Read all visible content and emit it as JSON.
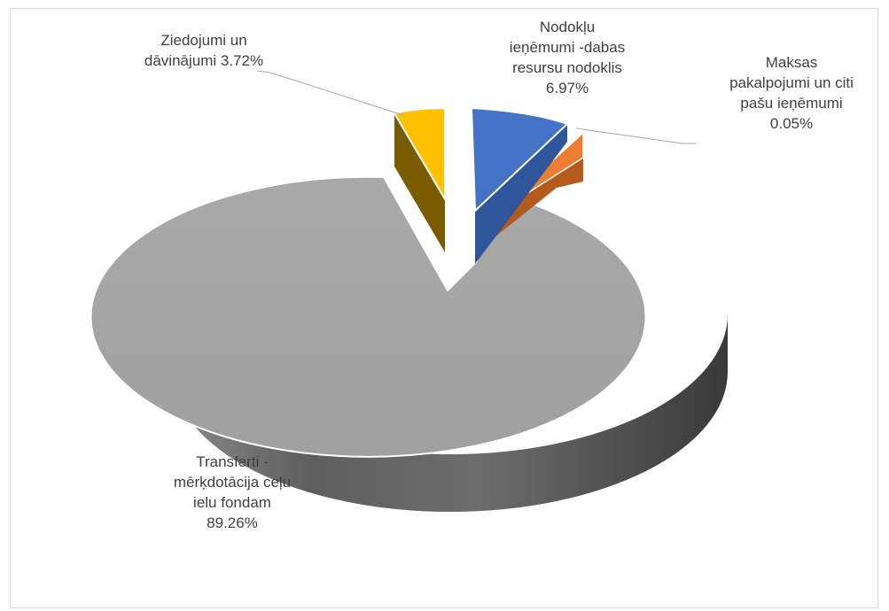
{
  "chart_data": {
    "type": "pie",
    "style": "3d-exploded",
    "title": "",
    "legend": "none",
    "slices": [
      {
        "label_lines": [
          "Nodokļu",
          "ieņēmumi -dabas",
          "resursu nodoklis",
          "6.97%"
        ],
        "value": 6.97,
        "color": "#4472c4",
        "side_color": "#2f559a"
      },
      {
        "label_lines": [
          "Maksas",
          "pakalpojumi un citi",
          "pašu ieņēmumi",
          "0.05%"
        ],
        "value": 0.05,
        "color": "#ed7d31",
        "side_color": "#b35a1c"
      },
      {
        "label_lines": [
          "Transferti -",
          "mērķdotācija ceļu",
          "ielu fondam",
          "89.26%"
        ],
        "value": 89.26,
        "color": "#a5a5a5",
        "side_color": "#7b7b7b"
      },
      {
        "label_lines": [
          "Ziedojumi un",
          "dāvinājumi 3.72%"
        ],
        "value": 3.72,
        "color": "#ffc000",
        "side_color": "#7a5c00"
      }
    ]
  }
}
